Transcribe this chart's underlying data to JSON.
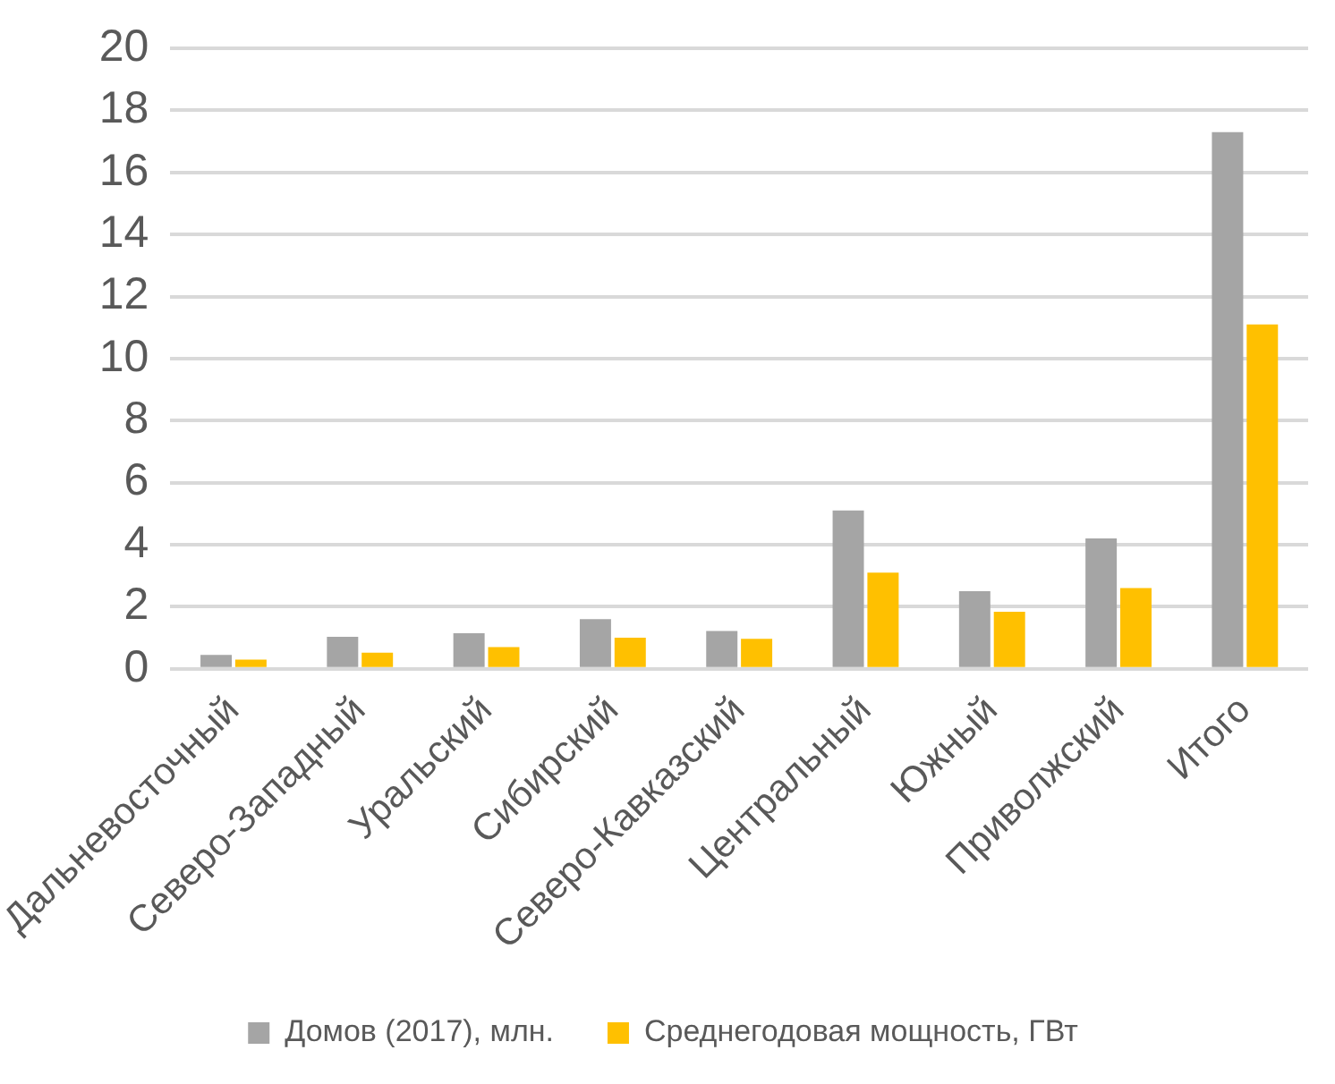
{
  "chart_data": {
    "type": "bar",
    "categories": [
      "Дальневосточный",
      "Северо-Западный",
      "Уральский",
      "Сибирский",
      "Северо-Кавказский",
      "Центральный",
      "Южный",
      "Приволжский",
      "Итого"
    ],
    "series": [
      {
        "name": "Домов (2017), млн.",
        "color": "#a5a5a5",
        "values": [
          0.45,
          1.03,
          1.15,
          1.6,
          1.22,
          5.1,
          2.5,
          4.2,
          17.3
        ]
      },
      {
        "name": "Среднегодовая мощность, ГВт",
        "color": "#ffc000",
        "values": [
          0.3,
          0.52,
          0.7,
          1.0,
          0.97,
          3.1,
          1.84,
          2.6,
          11.1
        ]
      }
    ],
    "ylim": [
      0,
      20
    ],
    "yticks": [
      0,
      2,
      4,
      6,
      8,
      10,
      12,
      14,
      16,
      18,
      20
    ],
    "grid": "y",
    "legend": "bottom"
  }
}
